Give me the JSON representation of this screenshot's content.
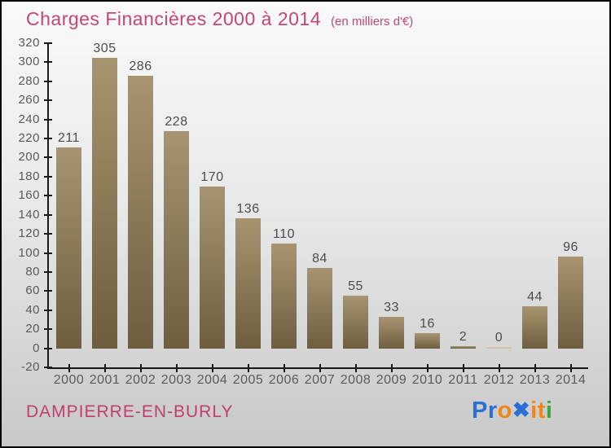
{
  "title": {
    "text": "Charges Financières 2000 à 2014",
    "subtitle": "(en milliers d'€)"
  },
  "footer": {
    "location": "DAMPIERRE-EN-BURLY"
  },
  "logo": {
    "text": "Proxiti",
    "letters": [
      {
        "ch": "P",
        "color": "#2a6fd6"
      },
      {
        "ch": "r",
        "color": "#2a6fd6"
      },
      {
        "ch": "o",
        "color": "#f08617"
      },
      {
        "ch": "✖",
        "color": "#2a6fd6",
        "x_mark": true
      },
      {
        "ch": "i",
        "color": "#f08617"
      },
      {
        "ch": "t",
        "color": "#f08617"
      },
      {
        "ch": "i",
        "color": "#3aa63c"
      }
    ]
  },
  "colors": {
    "title": "#c3476f",
    "location": "#c13f6e",
    "axis": "#1a1a1a",
    "tick_label": "#5a5a5a",
    "value_label": "#4c4c4c",
    "bar_top": "#a79471",
    "bar_bottom": "#6e5e3e",
    "bar_zero": "#cfc3a4",
    "background_top": "#fafafa",
    "background_bottom": "#c8c8c8",
    "border": "#000000"
  },
  "chart_data": {
    "type": "bar",
    "title": "Charges Financières 2000 à 2014",
    "subtitle": "(en milliers d'€)",
    "xlabel": "",
    "ylabel": "",
    "categories": [
      "2000",
      "2001",
      "2002",
      "2003",
      "2004",
      "2005",
      "2006",
      "2007",
      "2008",
      "2009",
      "2010",
      "2011",
      "2012",
      "2013",
      "2014"
    ],
    "values": [
      211,
      305,
      286,
      228,
      170,
      136,
      110,
      84,
      55,
      33,
      16,
      2,
      0,
      44,
      96
    ],
    "ylim": [
      -20,
      320
    ],
    "ytick_step": 20,
    "yticks": [
      320,
      300,
      280,
      260,
      240,
      220,
      200,
      180,
      160,
      140,
      120,
      100,
      80,
      60,
      40,
      20,
      0,
      -20
    ],
    "grid": false,
    "legend": "none",
    "bar_value_labels_shown": true
  }
}
